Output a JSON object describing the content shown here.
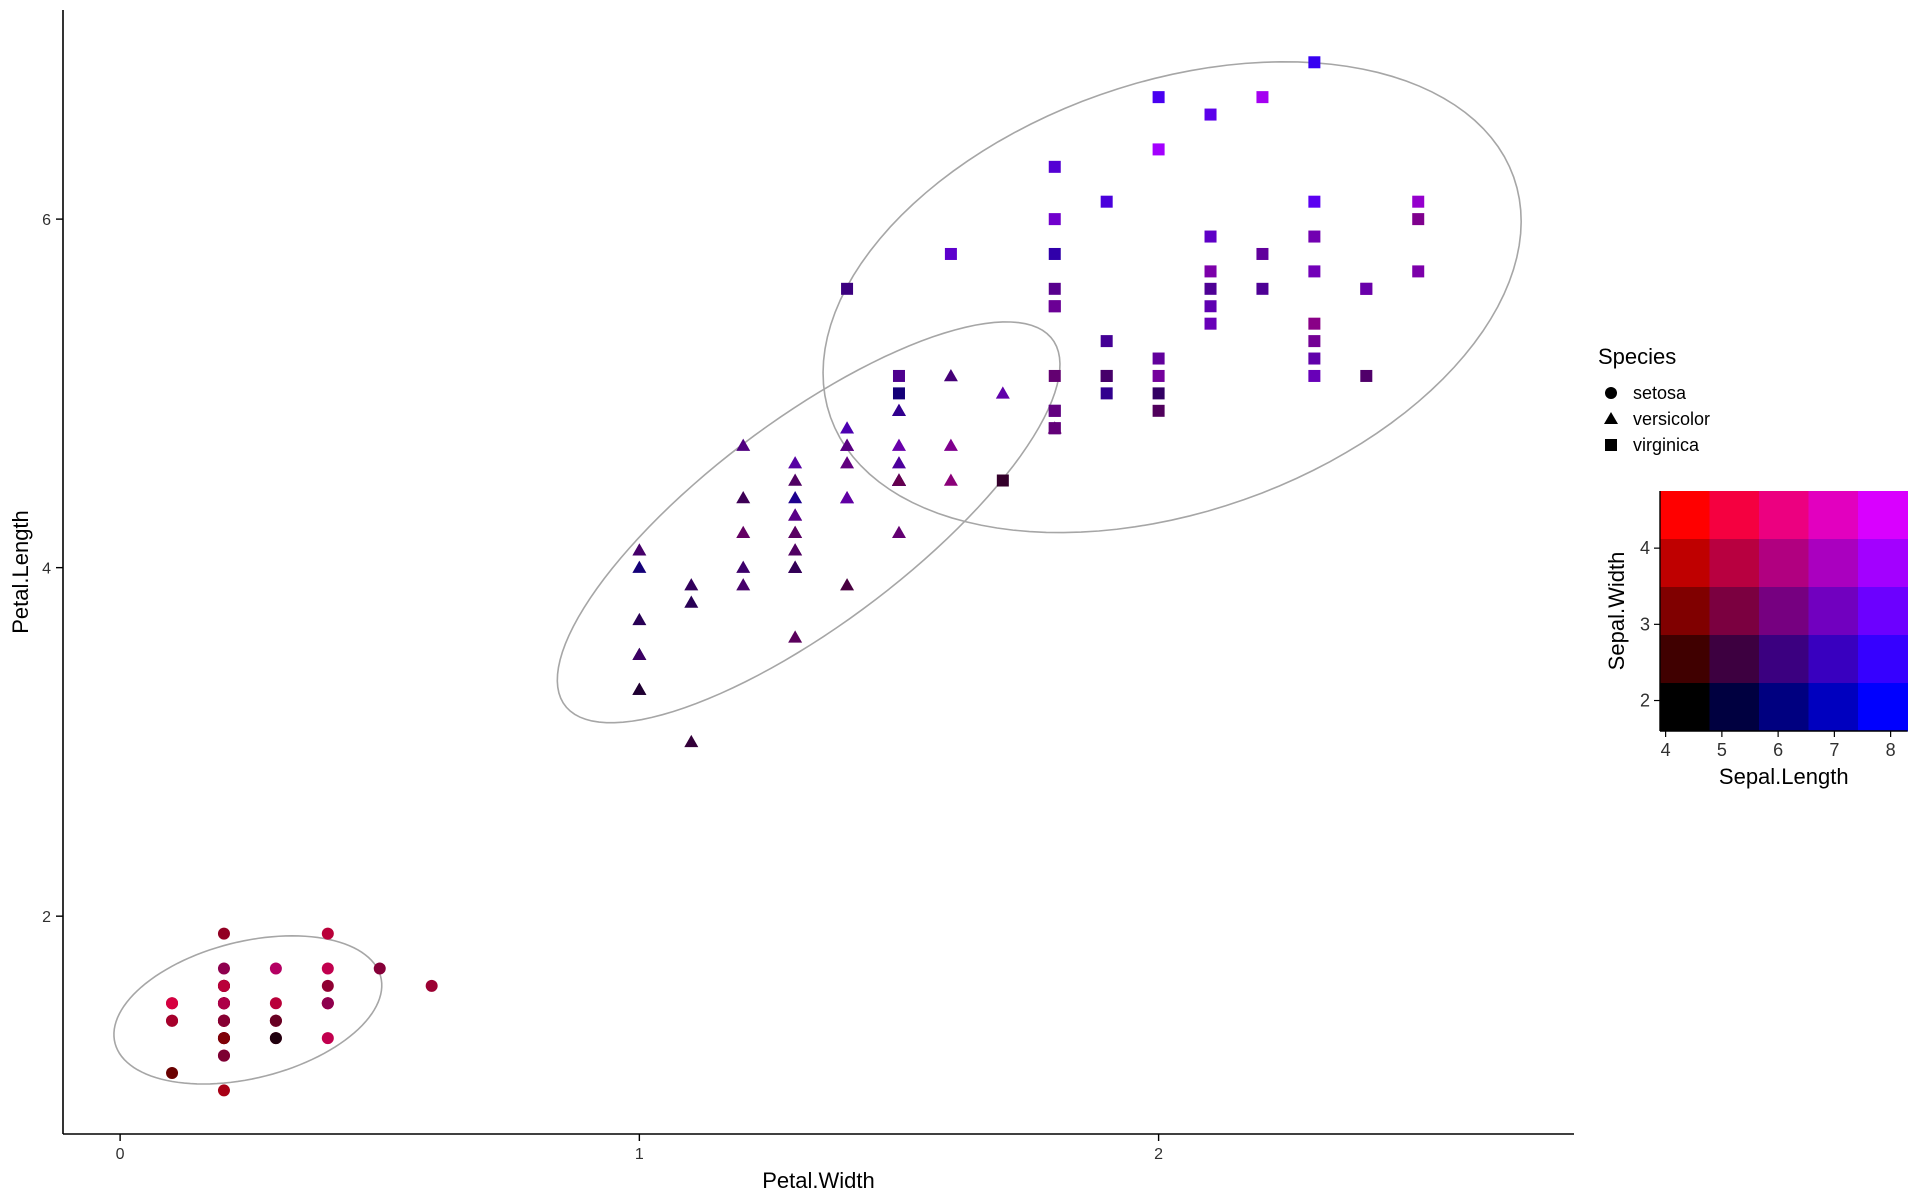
{
  "chart_data": {
    "type": "scatter",
    "xlabel": "Petal.Width",
    "ylabel": "Petal.Length",
    "xlim": [
      -0.11,
      2.8
    ],
    "ylim": [
      0.75,
      7.2
    ],
    "x_ticks": [
      "0",
      "1",
      "2"
    ],
    "y_ticks": [
      "2",
      "4",
      "6"
    ],
    "grid": false,
    "ellipses": true,
    "legend_species": {
      "title": "Species",
      "placement": "right",
      "entries": [
        {
          "label": "setosa",
          "shape": "circle"
        },
        {
          "label": "versicolor",
          "shape": "triangle"
        },
        {
          "label": "virginica",
          "shape": "square"
        }
      ]
    },
    "legend_color": {
      "type": "bivariate-grid",
      "placement": "right",
      "xlabel": "Sepal.Length",
      "ylabel": "Sepal.Width",
      "x_ticks": [
        "4",
        "5",
        "6",
        "7",
        "8"
      ],
      "y_ticks": [
        "2",
        "3",
        "4"
      ],
      "x_range": [
        4.3,
        7.9
      ],
      "y_range": [
        2.0,
        4.4
      ],
      "corner_colors": {
        "low_low": "#000000",
        "high_low": "#0000ff",
        "low_high": "#ff0000",
        "high_high": "#ff00ff"
      }
    },
    "series": [
      {
        "species": "setosa",
        "points": [
          [
            0.2,
            1.4,
            5.1,
            3.5
          ],
          [
            0.2,
            1.4,
            4.9,
            3.0
          ],
          [
            0.2,
            1.3,
            4.7,
            3.2
          ],
          [
            0.2,
            1.5,
            4.6,
            3.1
          ],
          [
            0.2,
            1.4,
            5.0,
            3.6
          ],
          [
            0.4,
            1.7,
            5.4,
            3.9
          ],
          [
            0.3,
            1.4,
            4.6,
            3.4
          ],
          [
            0.2,
            1.5,
            5.0,
            3.4
          ],
          [
            0.2,
            1.4,
            4.4,
            2.9
          ],
          [
            0.1,
            1.5,
            4.9,
            3.1
          ],
          [
            0.2,
            1.5,
            5.4,
            3.7
          ],
          [
            0.2,
            1.6,
            4.8,
            3.4
          ],
          [
            0.1,
            1.4,
            4.8,
            3.0
          ],
          [
            0.1,
            1.1,
            4.3,
            3.0
          ],
          [
            0.2,
            1.2,
            5.8,
            4.0
          ],
          [
            0.4,
            1.5,
            5.7,
            4.4
          ],
          [
            0.4,
            1.3,
            5.4,
            3.9
          ],
          [
            0.3,
            1.4,
            5.1,
            3.5
          ],
          [
            0.3,
            1.7,
            5.7,
            3.8
          ],
          [
            0.3,
            1.5,
            5.1,
            3.8
          ],
          [
            0.2,
            1.7,
            5.4,
            3.4
          ],
          [
            0.4,
            1.5,
            5.1,
            3.7
          ],
          [
            0.2,
            1.0,
            4.6,
            3.6
          ],
          [
            0.5,
            1.7,
            5.1,
            3.3
          ],
          [
            0.2,
            1.9,
            4.8,
            3.4
          ],
          [
            0.2,
            1.6,
            5.0,
            3.0
          ],
          [
            0.4,
            1.6,
            5.0,
            3.4
          ],
          [
            0.2,
            1.5,
            5.2,
            3.5
          ],
          [
            0.2,
            1.4,
            5.2,
            3.4
          ],
          [
            0.2,
            1.6,
            4.7,
            3.2
          ],
          [
            0.2,
            1.6,
            4.8,
            3.1
          ],
          [
            0.4,
            1.5,
            5.4,
            3.4
          ],
          [
            0.1,
            1.5,
            5.2,
            4.1
          ],
          [
            0.2,
            1.4,
            5.5,
            4.2
          ],
          [
            0.2,
            1.5,
            4.9,
            3.1
          ],
          [
            0.2,
            1.2,
            5.0,
            3.2
          ],
          [
            0.2,
            1.3,
            5.5,
            3.5
          ],
          [
            0.1,
            1.4,
            4.9,
            3.6
          ],
          [
            0.2,
            1.3,
            4.4,
            3.0
          ],
          [
            0.2,
            1.5,
            5.1,
            3.4
          ],
          [
            0.3,
            1.3,
            5.0,
            3.5
          ],
          [
            0.3,
            1.3,
            4.5,
            2.3
          ],
          [
            0.2,
            1.3,
            4.4,
            3.2
          ],
          [
            0.6,
            1.6,
            5.0,
            3.5
          ],
          [
            0.4,
            1.9,
            5.1,
            3.8
          ],
          [
            0.3,
            1.4,
            4.8,
            3.0
          ],
          [
            0.2,
            1.6,
            5.1,
            3.8
          ],
          [
            0.2,
            1.4,
            4.6,
            3.2
          ],
          [
            0.2,
            1.5,
            5.3,
            3.7
          ],
          [
            0.2,
            1.4,
            5.0,
            3.3
          ]
        ]
      },
      {
        "species": "versicolor",
        "points": [
          [
            1.4,
            4.7,
            7.0,
            3.2
          ],
          [
            1.5,
            4.5,
            6.4,
            3.2
          ],
          [
            1.5,
            4.9,
            6.9,
            3.1
          ],
          [
            1.3,
            4.0,
            5.5,
            2.3
          ],
          [
            1.5,
            4.6,
            6.5,
            2.8
          ],
          [
            1.3,
            4.5,
            5.7,
            2.8
          ],
          [
            1.6,
            4.7,
            6.3,
            3.3
          ],
          [
            1.0,
            3.3,
            4.9,
            2.4
          ],
          [
            1.3,
            4.6,
            6.6,
            2.9
          ],
          [
            1.4,
            3.9,
            5.2,
            2.7
          ],
          [
            1.0,
            3.5,
            5.0,
            2.0
          ],
          [
            1.5,
            4.2,
            5.9,
            3.0
          ],
          [
            1.0,
            4.0,
            6.0,
            2.2
          ],
          [
            1.4,
            4.7,
            6.1,
            2.9
          ],
          [
            1.3,
            3.6,
            5.6,
            2.9
          ],
          [
            1.4,
            4.4,
            6.7,
            3.1
          ],
          [
            1.5,
            4.5,
            5.6,
            3.0
          ],
          [
            1.0,
            4.1,
            5.8,
            2.7
          ],
          [
            1.5,
            4.5,
            6.2,
            2.2
          ],
          [
            1.1,
            3.9,
            5.6,
            2.5
          ],
          [
            1.8,
            4.8,
            5.9,
            3.2
          ],
          [
            1.3,
            4.0,
            6.1,
            2.8
          ],
          [
            1.5,
            4.9,
            6.3,
            2.5
          ],
          [
            1.2,
            4.7,
            6.1,
            2.8
          ],
          [
            1.3,
            4.3,
            6.4,
            2.9
          ],
          [
            1.4,
            4.4,
            6.6,
            3.0
          ],
          [
            1.4,
            4.8,
            6.8,
            2.8
          ],
          [
            1.7,
            5.0,
            6.7,
            3.0
          ],
          [
            1.5,
            4.5,
            6.0,
            2.9
          ],
          [
            1.0,
            3.5,
            5.7,
            2.6
          ],
          [
            1.1,
            3.8,
            5.5,
            2.4
          ],
          [
            1.0,
            3.7,
            5.5,
            2.4
          ],
          [
            1.2,
            3.9,
            5.8,
            2.7
          ],
          [
            1.6,
            5.1,
            6.0,
            2.7
          ],
          [
            1.5,
            4.5,
            5.4,
            3.0
          ],
          [
            1.6,
            4.5,
            6.0,
            3.4
          ],
          [
            1.5,
            4.7,
            6.7,
            3.1
          ],
          [
            1.3,
            4.4,
            6.3,
            2.3
          ],
          [
            1.3,
            4.1,
            5.6,
            3.0
          ],
          [
            1.3,
            4.0,
            5.5,
            2.5
          ],
          [
            1.2,
            4.4,
            5.5,
            2.6
          ],
          [
            1.4,
            4.6,
            6.1,
            3.0
          ],
          [
            1.2,
            4.0,
            5.8,
            2.6
          ],
          [
            1.0,
            3.3,
            5.0,
            2.3
          ],
          [
            1.3,
            4.2,
            5.6,
            2.7
          ],
          [
            1.2,
            4.2,
            5.7,
            3.0
          ],
          [
            1.3,
            4.2,
            5.7,
            2.9
          ],
          [
            1.3,
            4.3,
            6.2,
            2.9
          ],
          [
            1.1,
            3.0,
            5.1,
            2.5
          ],
          [
            1.3,
            4.1,
            5.7,
            2.8
          ]
        ]
      },
      {
        "species": "virginica",
        "points": [
          [
            2.5,
            6.0,
            6.3,
            3.3
          ],
          [
            1.9,
            5.1,
            5.8,
            2.7
          ],
          [
            2.1,
            5.9,
            7.1,
            3.0
          ],
          [
            1.8,
            5.6,
            6.3,
            2.9
          ],
          [
            2.2,
            5.8,
            6.5,
            3.0
          ],
          [
            2.1,
            6.6,
            7.6,
            3.0
          ],
          [
            1.7,
            4.5,
            4.9,
            2.5
          ],
          [
            1.8,
            6.3,
            7.3,
            2.9
          ],
          [
            1.8,
            5.8,
            6.7,
            2.5
          ],
          [
            2.5,
            6.1,
            7.2,
            3.6
          ],
          [
            2.0,
            5.1,
            6.5,
            3.2
          ],
          [
            1.9,
            5.3,
            6.4,
            2.7
          ],
          [
            2.1,
            5.5,
            6.8,
            3.0
          ],
          [
            2.0,
            5.0,
            5.7,
            2.5
          ],
          [
            2.4,
            5.1,
            5.8,
            2.8
          ],
          [
            2.3,
            5.3,
            6.4,
            3.2
          ],
          [
            1.8,
            5.5,
            6.5,
            3.0
          ],
          [
            2.2,
            6.7,
            7.7,
            3.8
          ],
          [
            2.3,
            6.9,
            7.7,
            2.6
          ],
          [
            1.5,
            5.0,
            6.0,
            2.2
          ],
          [
            2.3,
            5.7,
            6.9,
            3.2
          ],
          [
            2.0,
            4.9,
            5.6,
            2.8
          ],
          [
            2.0,
            6.7,
            7.7,
            2.8
          ],
          [
            1.8,
            4.9,
            6.3,
            2.7
          ],
          [
            2.1,
            5.7,
            6.7,
            3.3
          ],
          [
            1.8,
            6.0,
            7.2,
            3.2
          ],
          [
            1.8,
            4.8,
            6.2,
            2.8
          ],
          [
            1.8,
            4.9,
            6.1,
            3.0
          ],
          [
            2.1,
            5.6,
            6.4,
            2.8
          ],
          [
            1.6,
            5.8,
            7.2,
            3.0
          ],
          [
            1.9,
            6.1,
            7.4,
            2.8
          ],
          [
            2.0,
            6.4,
            7.9,
            3.8
          ],
          [
            2.2,
            5.6,
            6.4,
            2.8
          ],
          [
            1.5,
            5.1,
            6.3,
            2.8
          ],
          [
            1.4,
            5.6,
            6.1,
            2.6
          ],
          [
            2.3,
            6.1,
            7.7,
            3.0
          ],
          [
            2.4,
            5.6,
            6.3,
            3.4
          ],
          [
            1.8,
            5.5,
            6.4,
            3.1
          ],
          [
            1.8,
            4.8,
            6.0,
            3.0
          ],
          [
            2.1,
            5.4,
            6.9,
            3.1
          ],
          [
            2.4,
            5.6,
            6.7,
            3.1
          ],
          [
            2.3,
            5.1,
            6.9,
            3.1
          ],
          [
            1.9,
            5.1,
            5.8,
            2.7
          ],
          [
            2.3,
            5.9,
            6.8,
            3.2
          ],
          [
            2.5,
            5.7,
            6.7,
            3.3
          ],
          [
            2.3,
            5.2,
            6.7,
            3.0
          ],
          [
            1.9,
            5.0,
            6.3,
            2.5
          ],
          [
            2.0,
            5.2,
            6.5,
            3.0
          ],
          [
            2.3,
            5.4,
            6.2,
            3.4
          ],
          [
            1.8,
            5.1,
            5.9,
            3.0
          ]
        ]
      }
    ],
    "point_fields": [
      "Petal.Width",
      "Petal.Length",
      "Sepal.Length",
      "Sepal.Width"
    ]
  }
}
